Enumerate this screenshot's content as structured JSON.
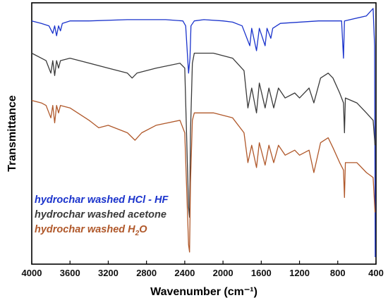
{
  "chart_data": {
    "type": "line",
    "xlabel": "Wavenumber (cm⁻¹)",
    "ylabel": "Transmittance",
    "xlim": [
      4000,
      400
    ],
    "x_reversed": true,
    "x_ticks": [
      "4000",
      "3600",
      "3200",
      "2800",
      "2400",
      "2000",
      "1600",
      "1200",
      "800",
      "400"
    ],
    "y_ticks_shown": false,
    "grid": false,
    "legend_position": "lower-left",
    "y_units": "arbitrary (curves vertically offset)",
    "series": [
      {
        "name": "hydrochar washed HCl - HF",
        "legend_parts": [
          "hydrochar washed HCl - HF"
        ],
        "color": "#1a33cc",
        "points": [
          [
            4000,
            0.95
          ],
          [
            3900,
            0.94
          ],
          [
            3820,
            0.93
          ],
          [
            3780,
            0.9
          ],
          [
            3760,
            0.93
          ],
          [
            3740,
            0.89
          ],
          [
            3720,
            0.93
          ],
          [
            3700,
            0.91
          ],
          [
            3680,
            0.94
          ],
          [
            3600,
            0.95
          ],
          [
            3400,
            0.95
          ],
          [
            3000,
            0.955
          ],
          [
            2600,
            0.955
          ],
          [
            2420,
            0.95
          ],
          [
            2390,
            0.93
          ],
          [
            2360,
            0.74
          ],
          [
            2345,
            0.8
          ],
          [
            2335,
            0.93
          ],
          [
            2300,
            0.95
          ],
          [
            2200,
            0.955
          ],
          [
            2000,
            0.95
          ],
          [
            1900,
            0.945
          ],
          [
            1800,
            0.93
          ],
          [
            1720,
            0.85
          ],
          [
            1700,
            0.92
          ],
          [
            1650,
            0.83
          ],
          [
            1620,
            0.92
          ],
          [
            1560,
            0.85
          ],
          [
            1540,
            0.92
          ],
          [
            1500,
            0.88
          ],
          [
            1480,
            0.92
          ],
          [
            1400,
            0.94
          ],
          [
            1000,
            0.95
          ],
          [
            800,
            0.95
          ],
          [
            760,
            0.95
          ],
          [
            740,
            0.8
          ],
          [
            730,
            0.95
          ],
          [
            500,
            0.97
          ],
          [
            430,
            1.0
          ],
          [
            415,
            0.85
          ],
          [
            408,
            0.0
          ]
        ]
      },
      {
        "name": "hydrochar washed acetone",
        "legend_parts": [
          "hydrochar washed acetone"
        ],
        "color": "#3a3a3a",
        "points": [
          [
            4000,
            0.82
          ],
          [
            3900,
            0.8
          ],
          [
            3850,
            0.79
          ],
          [
            3800,
            0.74
          ],
          [
            3780,
            0.79
          ],
          [
            3760,
            0.73
          ],
          [
            3740,
            0.79
          ],
          [
            3720,
            0.76
          ],
          [
            3700,
            0.79
          ],
          [
            3600,
            0.8
          ],
          [
            3500,
            0.79
          ],
          [
            3200,
            0.76
          ],
          [
            3000,
            0.74
          ],
          [
            2950,
            0.72
          ],
          [
            2900,
            0.74
          ],
          [
            2700,
            0.76
          ],
          [
            2450,
            0.78
          ],
          [
            2400,
            0.76
          ],
          [
            2360,
            0.2
          ],
          [
            2350,
            0.16
          ],
          [
            2340,
            0.5
          ],
          [
            2320,
            0.78
          ],
          [
            2300,
            0.82
          ],
          [
            2100,
            0.82
          ],
          [
            1900,
            0.8
          ],
          [
            1780,
            0.75
          ],
          [
            1740,
            0.6
          ],
          [
            1700,
            0.68
          ],
          [
            1650,
            0.58
          ],
          [
            1620,
            0.7
          ],
          [
            1560,
            0.6
          ],
          [
            1520,
            0.68
          ],
          [
            1470,
            0.6
          ],
          [
            1420,
            0.68
          ],
          [
            1350,
            0.64
          ],
          [
            1250,
            0.66
          ],
          [
            1200,
            0.64
          ],
          [
            1100,
            0.68
          ],
          [
            1050,
            0.62
          ],
          [
            980,
            0.72
          ],
          [
            900,
            0.74
          ],
          [
            850,
            0.72
          ],
          [
            780,
            0.66
          ],
          [
            740,
            0.62
          ],
          [
            730,
            0.5
          ],
          [
            720,
            0.64
          ],
          [
            600,
            0.62
          ],
          [
            500,
            0.58
          ],
          [
            430,
            0.55
          ],
          [
            410,
            0.45
          ]
        ]
      },
      {
        "name": "hydrochar washed H₂O",
        "legend_parts": [
          "hydrochar washed H",
          "2",
          "O"
        ],
        "color": "#b0582a",
        "points": [
          [
            4000,
            0.63
          ],
          [
            3900,
            0.62
          ],
          [
            3850,
            0.61
          ],
          [
            3800,
            0.56
          ],
          [
            3780,
            0.61
          ],
          [
            3760,
            0.54
          ],
          [
            3740,
            0.61
          ],
          [
            3720,
            0.58
          ],
          [
            3700,
            0.61
          ],
          [
            3600,
            0.6
          ],
          [
            3400,
            0.55
          ],
          [
            3300,
            0.52
          ],
          [
            3200,
            0.53
          ],
          [
            3000,
            0.5
          ],
          [
            2920,
            0.47
          ],
          [
            2850,
            0.5
          ],
          [
            2700,
            0.53
          ],
          [
            2450,
            0.55
          ],
          [
            2400,
            0.5
          ],
          [
            2360,
            0.05
          ],
          [
            2350,
            0.02
          ],
          [
            2340,
            0.3
          ],
          [
            2320,
            0.55
          ],
          [
            2300,
            0.58
          ],
          [
            2100,
            0.58
          ],
          [
            1900,
            0.56
          ],
          [
            1780,
            0.5
          ],
          [
            1740,
            0.38
          ],
          [
            1700,
            0.45
          ],
          [
            1650,
            0.36
          ],
          [
            1620,
            0.46
          ],
          [
            1560,
            0.37
          ],
          [
            1520,
            0.45
          ],
          [
            1470,
            0.38
          ],
          [
            1420,
            0.45
          ],
          [
            1350,
            0.41
          ],
          [
            1250,
            0.43
          ],
          [
            1200,
            0.41
          ],
          [
            1100,
            0.43
          ],
          [
            1050,
            0.34
          ],
          [
            980,
            0.46
          ],
          [
            900,
            0.48
          ],
          [
            850,
            0.44
          ],
          [
            780,
            0.38
          ],
          [
            740,
            0.35
          ],
          [
            730,
            0.24
          ],
          [
            720,
            0.38
          ],
          [
            600,
            0.38
          ],
          [
            500,
            0.34
          ],
          [
            430,
            0.32
          ],
          [
            410,
            0.18
          ]
        ]
      }
    ]
  }
}
